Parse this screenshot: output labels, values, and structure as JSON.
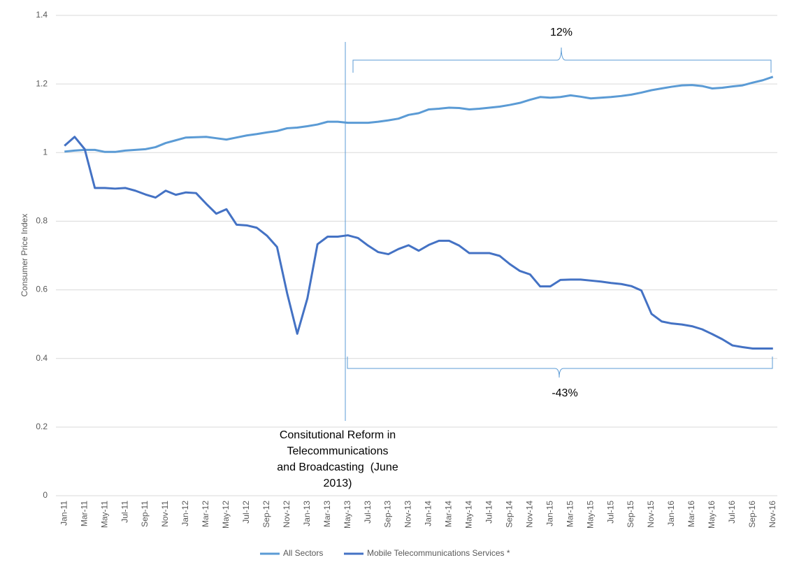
{
  "chart_data": {
    "type": "line",
    "y_label": "Consumer Price Index",
    "categories": [
      "Jan-11",
      null,
      "Mar-11",
      null,
      "May-11",
      null,
      "Jul-11",
      null,
      "Sep-11",
      null,
      "Nov-11",
      null,
      "Jan-12",
      null,
      "Mar-12",
      null,
      "May-12",
      null,
      "Jul-12",
      null,
      "Sep-12",
      null,
      "Nov-12",
      null,
      "Jan-13",
      null,
      "Mar-13",
      null,
      "May-13",
      null,
      "Jul-13",
      null,
      "Sep-13",
      null,
      "Nov-13",
      null,
      "Jan-14",
      null,
      "Mar-14",
      null,
      "May-14",
      null,
      "Jul-14",
      null,
      "Sep-14",
      null,
      "Nov-14",
      null,
      "Jan-15",
      null,
      "Mar-15",
      null,
      "May-15",
      null,
      "Jul-15",
      null,
      "Sep-15",
      null,
      "Nov-15",
      null,
      "Jan-16",
      null,
      "Mar-16",
      null,
      "May-16",
      null,
      "Jul-16",
      null,
      "Sep-16",
      null,
      "Nov-16"
    ],
    "series": [
      {
        "name": "All Sectors",
        "color": "#5b9bd5",
        "values": [
          1.003,
          1.006,
          1.008,
          1.008,
          1.002,
          1.002,
          1.006,
          1.008,
          1.01,
          1.016,
          1.028,
          1.036,
          1.044,
          1.045,
          1.046,
          1.042,
          1.038,
          1.044,
          1.05,
          1.054,
          1.059,
          1.063,
          1.071,
          1.073,
          1.077,
          1.082,
          1.09,
          1.09,
          1.087,
          1.087,
          1.087,
          1.09,
          1.094,
          1.099,
          1.11,
          1.115,
          1.126,
          1.128,
          1.131,
          1.13,
          1.126,
          1.128,
          1.131,
          1.134,
          1.139,
          1.145,
          1.154,
          1.162,
          1.16,
          1.162,
          1.167,
          1.163,
          1.158,
          1.16,
          1.162,
          1.165,
          1.169,
          1.175,
          1.182,
          1.187,
          1.192,
          1.196,
          1.197,
          1.194,
          1.187,
          1.189,
          1.193,
          1.196,
          1.204,
          1.211,
          1.221
        ]
      },
      {
        "name": "Mobile Telecommunications Services *",
        "color": "#4472c4",
        "values": [
          1.02,
          1.046,
          1.01,
          0.897,
          0.897,
          0.895,
          0.897,
          0.889,
          0.878,
          0.869,
          0.889,
          0.877,
          0.884,
          0.882,
          0.851,
          0.822,
          0.835,
          0.79,
          0.788,
          0.781,
          0.758,
          0.725,
          0.59,
          0.472,
          0.575,
          0.733,
          0.755,
          0.755,
          0.759,
          0.751,
          0.729,
          0.71,
          0.704,
          0.719,
          0.73,
          0.714,
          0.731,
          0.743,
          0.743,
          0.729,
          0.707,
          0.707,
          0.707,
          0.699,
          0.675,
          0.655,
          0.645,
          0.61,
          0.61,
          0.629,
          0.63,
          0.63,
          0.627,
          0.624,
          0.62,
          0.617,
          0.611,
          0.598,
          0.53,
          0.508,
          0.502,
          0.499,
          0.494,
          0.485,
          0.471,
          0.456,
          0.438,
          0.433,
          0.429,
          0.429,
          0.429
        ]
      }
    ],
    "ylim": [
      0,
      1.4
    ],
    "yticks": [
      0,
      0.2,
      0.4,
      0.6,
      0.8,
      1,
      1.2,
      1.4
    ],
    "grid": true,
    "annotations": [
      "12%",
      "-43%",
      "Consitutional Reform in",
      "Telecommunications",
      "and Broadcasting  (June",
      "2013)"
    ],
    "legend": "bottom"
  }
}
